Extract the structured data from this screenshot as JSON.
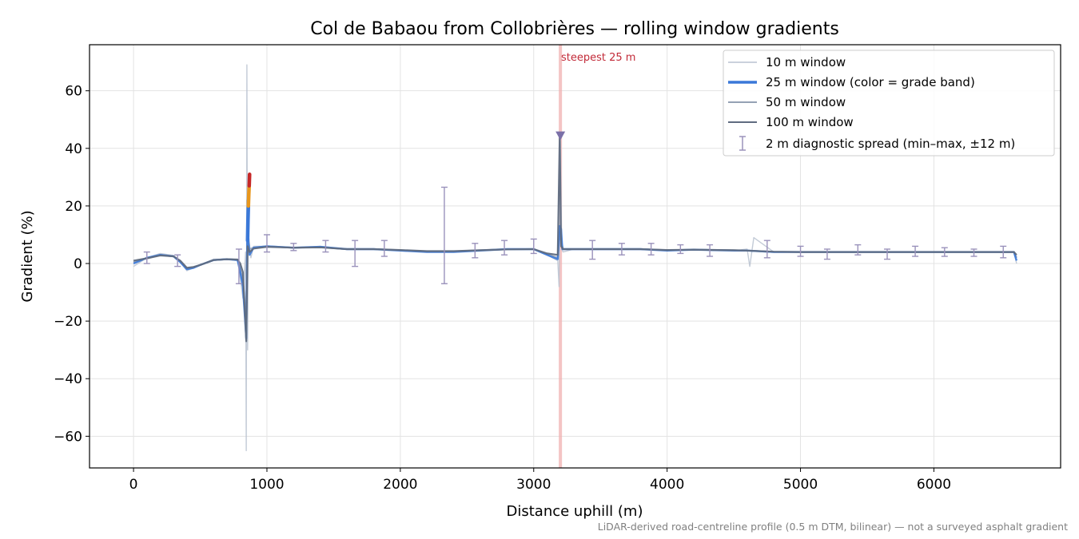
{
  "chart_data": {
    "type": "line",
    "title": "Col de Babaou from Collobrières — rolling window gradients",
    "xlabel": "Distance uphill (m)",
    "ylabel": "Gradient (%)",
    "xlim": [
      -330,
      6950
    ],
    "ylim": [
      -71,
      76
    ],
    "xticks": [
      0,
      1000,
      2000,
      3000,
      4000,
      5000,
      6000
    ],
    "yticks": [
      -60,
      -40,
      -20,
      0,
      20,
      40,
      60
    ],
    "grid": true,
    "legend_position": "upper right",
    "series": [
      {
        "name": "10 m window",
        "color": "#b8c2d0",
        "x": [
          0,
          100,
          200,
          300,
          350,
          400,
          450,
          500,
          600,
          700,
          780,
          800,
          820,
          840,
          845,
          850,
          855,
          860,
          880,
          900,
          1000,
          1200,
          1400,
          1600,
          1800,
          2000,
          2200,
          2400,
          2600,
          2800,
          3000,
          3100,
          3180,
          3190,
          3200,
          3210,
          3220,
          3300,
          3500,
          3800,
          4000,
          4200,
          4500,
          4600,
          4620,
          4650,
          4800,
          5000,
          5500,
          6000,
          6400,
          6600,
          6620
        ],
        "y": [
          -1,
          2,
          3.5,
          2.8,
          0.5,
          -2.5,
          -1.5,
          -0.5,
          1.5,
          1.5,
          1.0,
          -5,
          -12,
          4,
          -65,
          69,
          -30,
          8,
          2,
          6,
          6,
          5.5,
          6,
          5,
          5,
          4.5,
          4,
          4,
          4.5,
          5,
          5,
          3,
          1,
          -8,
          45,
          5,
          4,
          5,
          5,
          5,
          4.5,
          5,
          4.5,
          5,
          -1,
          9,
          4,
          4,
          4,
          4,
          4,
          4,
          0
        ]
      },
      {
        "name": "25 m window (color = grade band)",
        "color": "#3a78d8",
        "x": [
          0,
          100,
          200,
          300,
          350,
          400,
          450,
          500,
          600,
          700,
          780,
          800,
          820,
          845,
          855,
          860,
          870,
          900,
          1000,
          1200,
          1400,
          1600,
          1800,
          2000,
          2200,
          2400,
          2600,
          2800,
          3000,
          3100,
          3180,
          3195,
          3205,
          3215,
          3300,
          3500,
          3800,
          4000,
          4200,
          4500,
          4600,
          4800,
          5000,
          5500,
          6000,
          6400,
          6600,
          6620
        ],
        "y": [
          0,
          2,
          3,
          2.5,
          0.5,
          -2,
          -1.5,
          -0.5,
          1.2,
          1.5,
          1.2,
          -3,
          -8,
          -26,
          22,
          8,
          3,
          5.5,
          6,
          5.5,
          5.8,
          5,
          5,
          4.5,
          4,
          4,
          4.5,
          5,
          5,
          3,
          1.5,
          13,
          12,
          5,
          5,
          5,
          5,
          4.5,
          4.8,
          4.5,
          4.5,
          4,
          4,
          4,
          4,
          4,
          4,
          1
        ]
      },
      {
        "name": "50 m window",
        "color": "#95a1b4",
        "x": [
          0,
          100,
          200,
          300,
          350,
          400,
          450,
          500,
          600,
          700,
          780,
          800,
          820,
          845,
          855,
          870,
          900,
          1000,
          1200,
          1400,
          1600,
          1800,
          2000,
          2200,
          2400,
          2600,
          2800,
          3000,
          3100,
          3180,
          3195,
          3205,
          3220,
          3300,
          3500,
          3800,
          4000,
          4200,
          4500,
          4600,
          4800,
          5000,
          5500,
          6000,
          6400,
          6600,
          6620
        ],
        "y": [
          0.5,
          1.8,
          3,
          2.5,
          0.8,
          -1.8,
          -1.3,
          -0.5,
          1.2,
          1.5,
          1.3,
          -2,
          -6,
          -20,
          12,
          5,
          5.5,
          6,
          5.5,
          5.7,
          5,
          5,
          4.6,
          4.2,
          4.2,
          4.6,
          5,
          5,
          3.2,
          2,
          11,
          8,
          5,
          5,
          5,
          5,
          4.6,
          4.8,
          4.6,
          4.5,
          4,
          4,
          4,
          4,
          4,
          4,
          2
        ]
      },
      {
        "name": "100 m window",
        "color": "#5f6b80",
        "x": [
          0,
          100,
          200,
          300,
          350,
          400,
          450,
          500,
          600,
          700,
          780,
          800,
          820,
          845,
          855,
          870,
          900,
          1000,
          1200,
          1400,
          1600,
          1800,
          2000,
          2200,
          2400,
          2600,
          2800,
          3000,
          3100,
          3180,
          3195,
          3205,
          3220,
          3300,
          3500,
          3800,
          4000,
          4200,
          4500,
          4600,
          4800,
          5000,
          5500,
          6000,
          6400,
          6600,
          6620
        ],
        "y": [
          1,
          1.8,
          2.8,
          2.5,
          1,
          -1.5,
          -1.2,
          -0.5,
          1.2,
          1.5,
          1.4,
          0,
          -3,
          -27,
          6,
          4,
          5.2,
          5.8,
          5.5,
          5.6,
          5,
          5,
          4.7,
          4.3,
          4.3,
          4.6,
          4.9,
          5,
          3.5,
          3,
          45,
          6,
          5,
          5,
          5,
          5,
          4.7,
          4.8,
          4.6,
          4.5,
          4.1,
          4,
          4,
          4,
          4,
          4,
          3
        ]
      }
    ],
    "grade_band_segment": {
      "x": [
        855,
        858,
        861,
        864,
        867,
        870
      ],
      "y": [
        8,
        15,
        20,
        24,
        27,
        31
      ],
      "colors": [
        "#3a78d8",
        "#3a78d8",
        "#e8961c",
        "#e8961c",
        "#c62828"
      ]
    },
    "diagnostic_spread": {
      "name": "2 m diagnostic spread (min–max, ±12 m)",
      "color": "#9a92bb",
      "points": [
        {
          "x": 100,
          "min": 0,
          "max": 4
        },
        {
          "x": 330,
          "min": -1,
          "max": 3
        },
        {
          "x": 790,
          "min": -7,
          "max": 5
        },
        {
          "x": 1000,
          "min": 4,
          "max": 10
        },
        {
          "x": 1200,
          "min": 4.5,
          "max": 7
        },
        {
          "x": 1440,
          "min": 4,
          "max": 8
        },
        {
          "x": 1660,
          "min": -1,
          "max": 8
        },
        {
          "x": 1880,
          "min": 2.5,
          "max": 8
        },
        {
          "x": 2330,
          "min": -7,
          "max": 26.5
        },
        {
          "x": 2560,
          "min": 2,
          "max": 7
        },
        {
          "x": 2780,
          "min": 3,
          "max": 8
        },
        {
          "x": 3000,
          "min": 3.5,
          "max": 8.5
        },
        {
          "x": 3440,
          "min": 1.5,
          "max": 8
        },
        {
          "x": 3660,
          "min": 3,
          "max": 7
        },
        {
          "x": 3880,
          "min": 3,
          "max": 7
        },
        {
          "x": 4100,
          "min": 3.5,
          "max": 6.5
        },
        {
          "x": 4320,
          "min": 2.5,
          "max": 6.5
        },
        {
          "x": 4750,
          "min": 2,
          "max": 8
        },
        {
          "x": 5000,
          "min": 2.5,
          "max": 6
        },
        {
          "x": 5200,
          "min": 1.5,
          "max": 5
        },
        {
          "x": 5430,
          "min": 3,
          "max": 6.5
        },
        {
          "x": 5650,
          "min": 1.5,
          "max": 5
        },
        {
          "x": 5860,
          "min": 2.5,
          "max": 6
        },
        {
          "x": 6080,
          "min": 2.5,
          "max": 5.5
        },
        {
          "x": 6300,
          "min": 2.5,
          "max": 5
        },
        {
          "x": 6520,
          "min": 2,
          "max": 6
        }
      ]
    },
    "steepest_marker": {
      "label": "steepest 25 m",
      "x_start": 3188,
      "x_end": 3212,
      "peak_x": 3200,
      "peak_y": 44.5,
      "band_color": "#f0b0b0",
      "label_color": "#c22a38",
      "marker_color": "#7b70a8"
    }
  },
  "footnote": "LiDAR-derived road-centreline profile (0.5 m DTM, bilinear) — not a surveyed asphalt gradient"
}
